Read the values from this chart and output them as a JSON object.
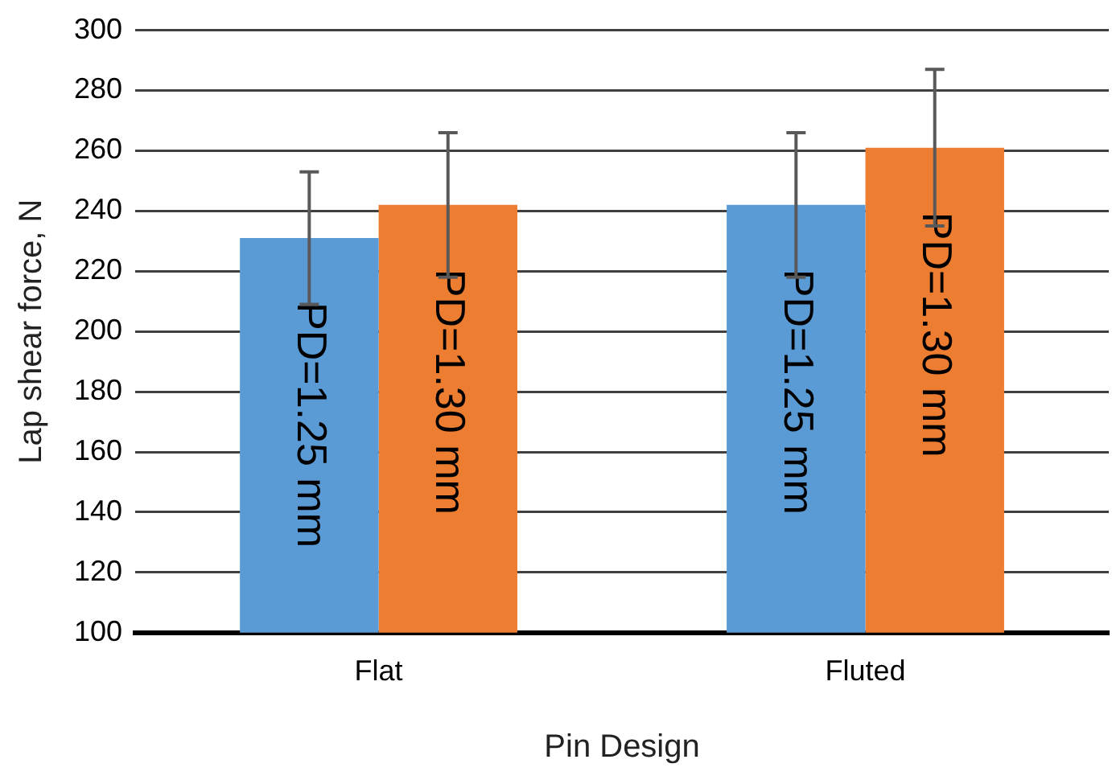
{
  "chart_data": {
    "type": "bar",
    "xlabel": "Pin Design",
    "ylabel": "Lap shear force, N",
    "categories": [
      "Flat",
      "Fluted"
    ],
    "series": [
      {
        "name": "PD=1.25 mm",
        "color": "#5b9bd5",
        "values": [
          231,
          242
        ],
        "errors": [
          22,
          24
        ]
      },
      {
        "name": "PD=1.30 mm",
        "color": "#ed7d31",
        "values": [
          242,
          261
        ],
        "errors": [
          24,
          26
        ]
      }
    ],
    "ylim": [
      100,
      300
    ],
    "yticks": [
      100,
      120,
      140,
      160,
      180,
      200,
      220,
      240,
      260,
      280,
      300
    ],
    "grid": "y",
    "legend": false
  }
}
